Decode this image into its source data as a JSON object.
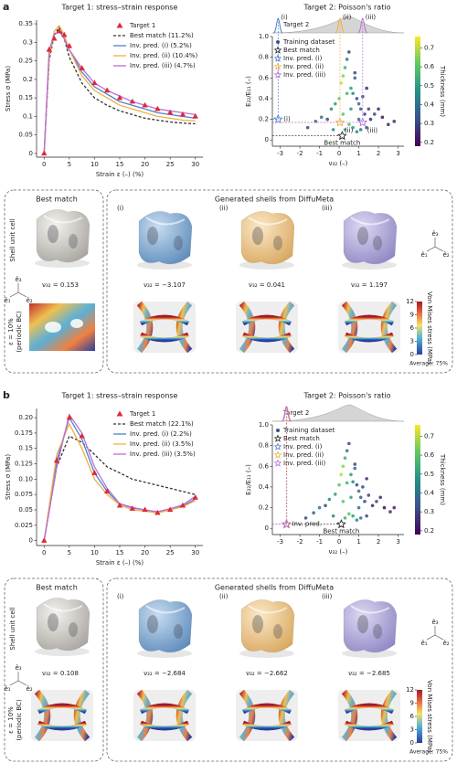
{
  "chart_data": [
    {
      "type": "line",
      "title": "Target 1: stress–strain response",
      "xlabel": "Strain ε (–) (%)",
      "ylabel": "Stress σ (MPa)",
      "x": [
        0,
        1,
        2,
        3,
        4,
        5,
        7.5,
        10,
        12.5,
        15,
        17.5,
        20,
        22.5,
        25,
        27.5,
        30
      ],
      "xlim": [
        -1.5,
        31.5
      ],
      "xticks": [
        0,
        5,
        10,
        15,
        20,
        25,
        30
      ],
      "ylim": [
        -0.01,
        0.36
      ],
      "yticks": [
        0,
        0.05,
        0.1,
        0.15,
        0.2,
        0.25,
        0.3,
        0.35
      ],
      "legend": "upper right",
      "series": [
        {
          "name": "Target 1",
          "color": "#e0283a",
          "marker": "triangle",
          "values": [
            0,
            0.28,
            0.31,
            0.33,
            0.32,
            0.29,
            0.23,
            0.19,
            0.17,
            0.15,
            0.14,
            0.13,
            0.12,
            0.11,
            0.105,
            0.1
          ]
        },
        {
          "name": "Best match (11.2%)",
          "color": "#333333",
          "dashed": true,
          "values": [
            0,
            0.25,
            0.32,
            0.34,
            0.31,
            0.26,
            0.19,
            0.15,
            0.13,
            0.115,
            0.105,
            0.095,
            0.09,
            0.085,
            0.082,
            0.08
          ]
        },
        {
          "name": "Inv. pred. (i) (5.2%)",
          "color": "#4f7fcf",
          "values": [
            0,
            0.27,
            0.32,
            0.33,
            0.31,
            0.28,
            0.22,
            0.18,
            0.16,
            0.14,
            0.13,
            0.12,
            0.11,
            0.105,
            0.1,
            0.095
          ]
        },
        {
          "name": "Inv. pred. (ii) (10.4%)",
          "color": "#f0b040",
          "values": [
            0,
            0.26,
            0.33,
            0.345,
            0.32,
            0.28,
            0.21,
            0.17,
            0.15,
            0.13,
            0.12,
            0.11,
            0.1,
            0.095,
            0.09,
            0.088
          ]
        },
        {
          "name": "Inv. pred. (iii) (4.7%)",
          "color": "#b86fd6",
          "values": [
            0,
            0.28,
            0.32,
            0.33,
            0.31,
            0.28,
            0.23,
            0.19,
            0.17,
            0.155,
            0.14,
            0.13,
            0.12,
            0.115,
            0.11,
            0.105
          ]
        }
      ]
    },
    {
      "type": "scatter",
      "title": "Target 2: Poisson's ratio",
      "target_label": "Target 2",
      "xlabel": "ν₃₂ (–)",
      "ylabel": "E₂₂/E₁₁ (–)",
      "xlim": [
        -3.4,
        3.3
      ],
      "xticks": [
        -3,
        -2,
        -1,
        0,
        1,
        2,
        3
      ],
      "ylim": [
        -0.06,
        1.0
      ],
      "yticks": [
        0,
        0.2,
        0.4,
        0.6,
        0.8,
        {
          "value": 1,
          "label": "1.0"
        }
      ],
      "legend": "upper left",
      "peak_labels": true,
      "colorbar": {
        "label": "Thickness (mm)",
        "lim": [
          0.18,
          0.76
        ],
        "ticks": [
          0.2,
          0.3,
          0.4,
          0.5,
          0.6,
          0.7
        ]
      },
      "series": [
        {
          "name": "Training dataset",
          "marker": "circle",
          "x": [
            -1.6,
            -1.2,
            -0.9,
            -0.6,
            -0.4,
            -0.2,
            0,
            0.1,
            0.2,
            0.3,
            0.4,
            0.5,
            0.6,
            0.7,
            0.8,
            0.9,
            1.0,
            1.1,
            1.2,
            1.3,
            1.4,
            1.5,
            1.6,
            1.8,
            2.0,
            2.2,
            2.5,
            0.3,
            0.5,
            0.7,
            0.9,
            1.1,
            0.2,
            0.6,
            1.0,
            0.4,
            0.8,
            1.4,
            -0.3,
            2.8
          ],
          "values": [
            0.12,
            0.18,
            0.22,
            0.2,
            0.3,
            0.35,
            0.4,
            0.55,
            0.62,
            0.7,
            0.78,
            0.85,
            0.5,
            0.45,
            0.6,
            0.4,
            0.35,
            0.3,
            0.42,
            0.25,
            0.5,
            0.3,
            0.2,
            0.25,
            0.3,
            0.22,
            0.15,
            0.1,
            0.15,
            0.12,
            0.08,
            0.1,
            0.25,
            0.3,
            0.2,
            0.45,
            0.65,
            0.12,
            0.1,
            0.18
          ],
          "thickness": [
            0.3,
            0.35,
            0.4,
            0.3,
            0.45,
            0.5,
            0.6,
            0.7,
            0.65,
            0.55,
            0.4,
            0.3,
            0.5,
            0.45,
            0.35,
            0.3,
            0.4,
            0.35,
            0.3,
            0.3,
            0.25,
            0.3,
            0.25,
            0.3,
            0.25,
            0.2,
            0.25,
            0.55,
            0.6,
            0.5,
            0.45,
            0.4,
            0.6,
            0.5,
            0.4,
            0.55,
            0.3,
            0.3,
            0.45,
            0.25
          ]
        },
        {
          "name": "Best match",
          "marker": "star",
          "color": "#222222",
          "tag": "Best match",
          "x": [
            0.153
          ],
          "values": [
            0.04
          ]
        },
        {
          "name": "Inv. pred. (i)",
          "marker": "star",
          "color": "#4f7fcf",
          "tag": "(i)",
          "x": [
            -3.107
          ],
          "values": [
            0.2
          ]
        },
        {
          "name": "Inv. pred. (ii)",
          "marker": "star",
          "color": "#f0b040",
          "tag": "(ii)",
          "x": [
            0.041
          ],
          "values": [
            0.17
          ]
        },
        {
          "name": "Inv. pred. (iii)",
          "marker": "star",
          "color": "#b86fd6",
          "tag": "(iii)",
          "x": [
            1.197
          ],
          "values": [
            0.17
          ]
        }
      ]
    },
    {
      "type": "line",
      "title": "Target 1: stress–strain response",
      "xlabel": "Strain ε (–) (%)",
      "ylabel": "Stress σ (MPa)",
      "x": [
        0,
        2.5,
        5,
        7.5,
        10,
        12.5,
        15,
        17.5,
        20,
        22.5,
        25,
        27.5,
        30
      ],
      "xlim": [
        -1.5,
        31.5
      ],
      "xticks": [
        0,
        5,
        10,
        15,
        20,
        25,
        30
      ],
      "ylim": [
        -0.008,
        0.215
      ],
      "yticks": [
        0,
        0.025,
        0.05,
        0.075,
        {
          "value": 0.1,
          "label": "0.10"
        },
        0.125,
        0.15,
        0.175,
        {
          "value": 0.2,
          "label": "0.20"
        }
      ],
      "legend": "upper right",
      "series": [
        {
          "name": "Target 1",
          "color": "#e0283a",
          "marker": "triangle",
          "values": [
            0,
            0.13,
            0.2,
            0.17,
            0.11,
            0.08,
            0.057,
            0.052,
            0.05,
            0.045,
            0.05,
            0.057,
            0.07
          ]
        },
        {
          "name": "Best match (22.1%)",
          "color": "#333333",
          "dashed": true,
          "values": [
            0,
            0.12,
            0.17,
            0.16,
            0.14,
            0.12,
            0.11,
            0.1,
            0.095,
            0.09,
            0.085,
            0.08,
            0.075
          ]
        },
        {
          "name": "Inv. pred. (i) (2.2%)",
          "color": "#4f7fcf",
          "values": [
            0,
            0.13,
            0.2,
            0.165,
            0.11,
            0.08,
            0.06,
            0.053,
            0.05,
            0.046,
            0.05,
            0.056,
            0.068
          ]
        },
        {
          "name": "Inv. pred. (ii) (3.5%)",
          "color": "#f0b040",
          "values": [
            0,
            0.14,
            0.19,
            0.15,
            0.1,
            0.075,
            0.058,
            0.05,
            0.048,
            0.045,
            0.05,
            0.055,
            0.065
          ]
        },
        {
          "name": "Inv. pred. (iii) (3.5%)",
          "color": "#b86fd6",
          "values": [
            0,
            0.12,
            0.205,
            0.175,
            0.12,
            0.085,
            0.06,
            0.054,
            0.05,
            0.047,
            0.052,
            0.058,
            0.072
          ]
        }
      ]
    },
    {
      "type": "scatter",
      "title": "Target 2: Poisson's ratio",
      "target_label": "Target 2",
      "xlabel": "ν₃₂ (–)",
      "ylabel": "E₂₂/E₁₁ (–)",
      "xlim": [
        -3.4,
        3.3
      ],
      "xticks": [
        -3,
        -2,
        -1,
        0,
        1,
        2,
        3
      ],
      "ylim": [
        -0.06,
        1.0
      ],
      "yticks": [
        0,
        0.2,
        0.4,
        0.6,
        0.8,
        {
          "value": 1,
          "label": "1.0"
        }
      ],
      "legend": "upper left",
      "peak_labels": false,
      "colorbar": {
        "label": "Thickness (mm)",
        "lim": [
          0.18,
          0.76
        ],
        "ticks": [
          0.2,
          0.3,
          0.4,
          0.5,
          0.6,
          0.7
        ]
      },
      "series": [
        {
          "name": "Training dataset",
          "marker": "circle",
          "x": [
            -1.7,
            -1.3,
            -1.0,
            -0.7,
            -0.5,
            -0.2,
            0,
            0.1,
            0.2,
            0.3,
            0.4,
            0.5,
            0.6,
            0.7,
            0.8,
            0.9,
            1.0,
            1.1,
            1.2,
            1.3,
            1.4,
            1.5,
            1.7,
            1.9,
            2.1,
            2.3,
            2.6,
            0.3,
            0.5,
            0.7,
            0.9,
            1.1,
            0.2,
            0.6,
            1.0,
            0.4,
            0.8,
            1.4,
            -0.3,
            2.8
          ],
          "values": [
            0.1,
            0.15,
            0.2,
            0.22,
            0.28,
            0.33,
            0.42,
            0.52,
            0.6,
            0.68,
            0.75,
            0.82,
            0.52,
            0.45,
            0.58,
            0.42,
            0.36,
            0.3,
            0.4,
            0.26,
            0.48,
            0.32,
            0.22,
            0.26,
            0.3,
            0.2,
            0.16,
            0.1,
            0.14,
            0.12,
            0.08,
            0.1,
            0.26,
            0.3,
            0.2,
            0.44,
            0.62,
            0.12,
            0.12,
            0.2
          ],
          "thickness": [
            0.3,
            0.35,
            0.4,
            0.3,
            0.45,
            0.5,
            0.6,
            0.7,
            0.65,
            0.55,
            0.4,
            0.3,
            0.5,
            0.45,
            0.35,
            0.3,
            0.4,
            0.35,
            0.3,
            0.3,
            0.25,
            0.3,
            0.25,
            0.3,
            0.25,
            0.2,
            0.25,
            0.55,
            0.6,
            0.5,
            0.45,
            0.4,
            0.6,
            0.5,
            0.4,
            0.55,
            0.3,
            0.3,
            0.45,
            0.25
          ]
        },
        {
          "name": "Best match",
          "marker": "star",
          "color": "#222222",
          "tag": "Best match",
          "x": [
            0.108
          ],
          "values": [
            0.04
          ]
        },
        {
          "name": "Inv. pred. (i)",
          "marker": "star",
          "color": "#4f7fcf",
          "tag": "Inv. pred.",
          "x": [
            -2.684
          ],
          "values": [
            0.04
          ]
        },
        {
          "name": "Inv. pred. (ii)",
          "marker": "star",
          "color": "#f0b040",
          "x": [
            -2.662
          ],
          "values": [
            0.04
          ]
        },
        {
          "name": "Inv. pred. (iii)",
          "marker": "star",
          "color": "#b86fd6",
          "x": [
            -2.685
          ],
          "values": [
            0.04
          ]
        }
      ]
    }
  ],
  "panels": [
    {
      "letter": "a",
      "best": {
        "title": "Best match",
        "row1": "Shell unit cell",
        "nu": "ν₃₂ = 0.153",
        "row2": [
          "ε = 10%",
          "(periodic BC)"
        ]
      },
      "generated": {
        "title": "Generated shells from DiffuMeta",
        "items": [
          {
            "label": "(i)",
            "nu": "ν₃₂ = −3.107"
          },
          {
            "label": "(ii)",
            "nu": "ν₃₂ = 0.041"
          },
          {
            "label": "(iii)",
            "nu": "ν₃₂ = 1.197"
          }
        ]
      },
      "axes": [
        "ê₃",
        "ê₁",
        "ê₂"
      ],
      "stress": {
        "label": "Von Mises stress (MPa)",
        "ticks": [
          0,
          3,
          6,
          9,
          12
        ],
        "note": "Average: 75%"
      }
    },
    {
      "letter": "b",
      "best": {
        "title": "Best match",
        "row1": "Shell unit cell",
        "nu": "ν₃₂ = 0.108",
        "row2": [
          "ε = 10%",
          "(periodic BC)"
        ]
      },
      "generated": {
        "title": "Generated shells from DiffuMeta",
        "items": [
          {
            "label": "(i)",
            "nu": "ν₃₂ = −2.684"
          },
          {
            "label": "(ii)",
            "nu": "ν₃₂ = −2.662"
          },
          {
            "label": "(iii)",
            "nu": "ν₃₂ = −2.685"
          }
        ]
      },
      "axes": [
        "ê₃",
        "ê₁",
        "ê₂"
      ],
      "stress": {
        "label": "Von Mises stress (MPa)",
        "ticks": [
          0,
          3,
          6,
          9,
          12
        ],
        "note": "Average: 75%"
      }
    }
  ]
}
